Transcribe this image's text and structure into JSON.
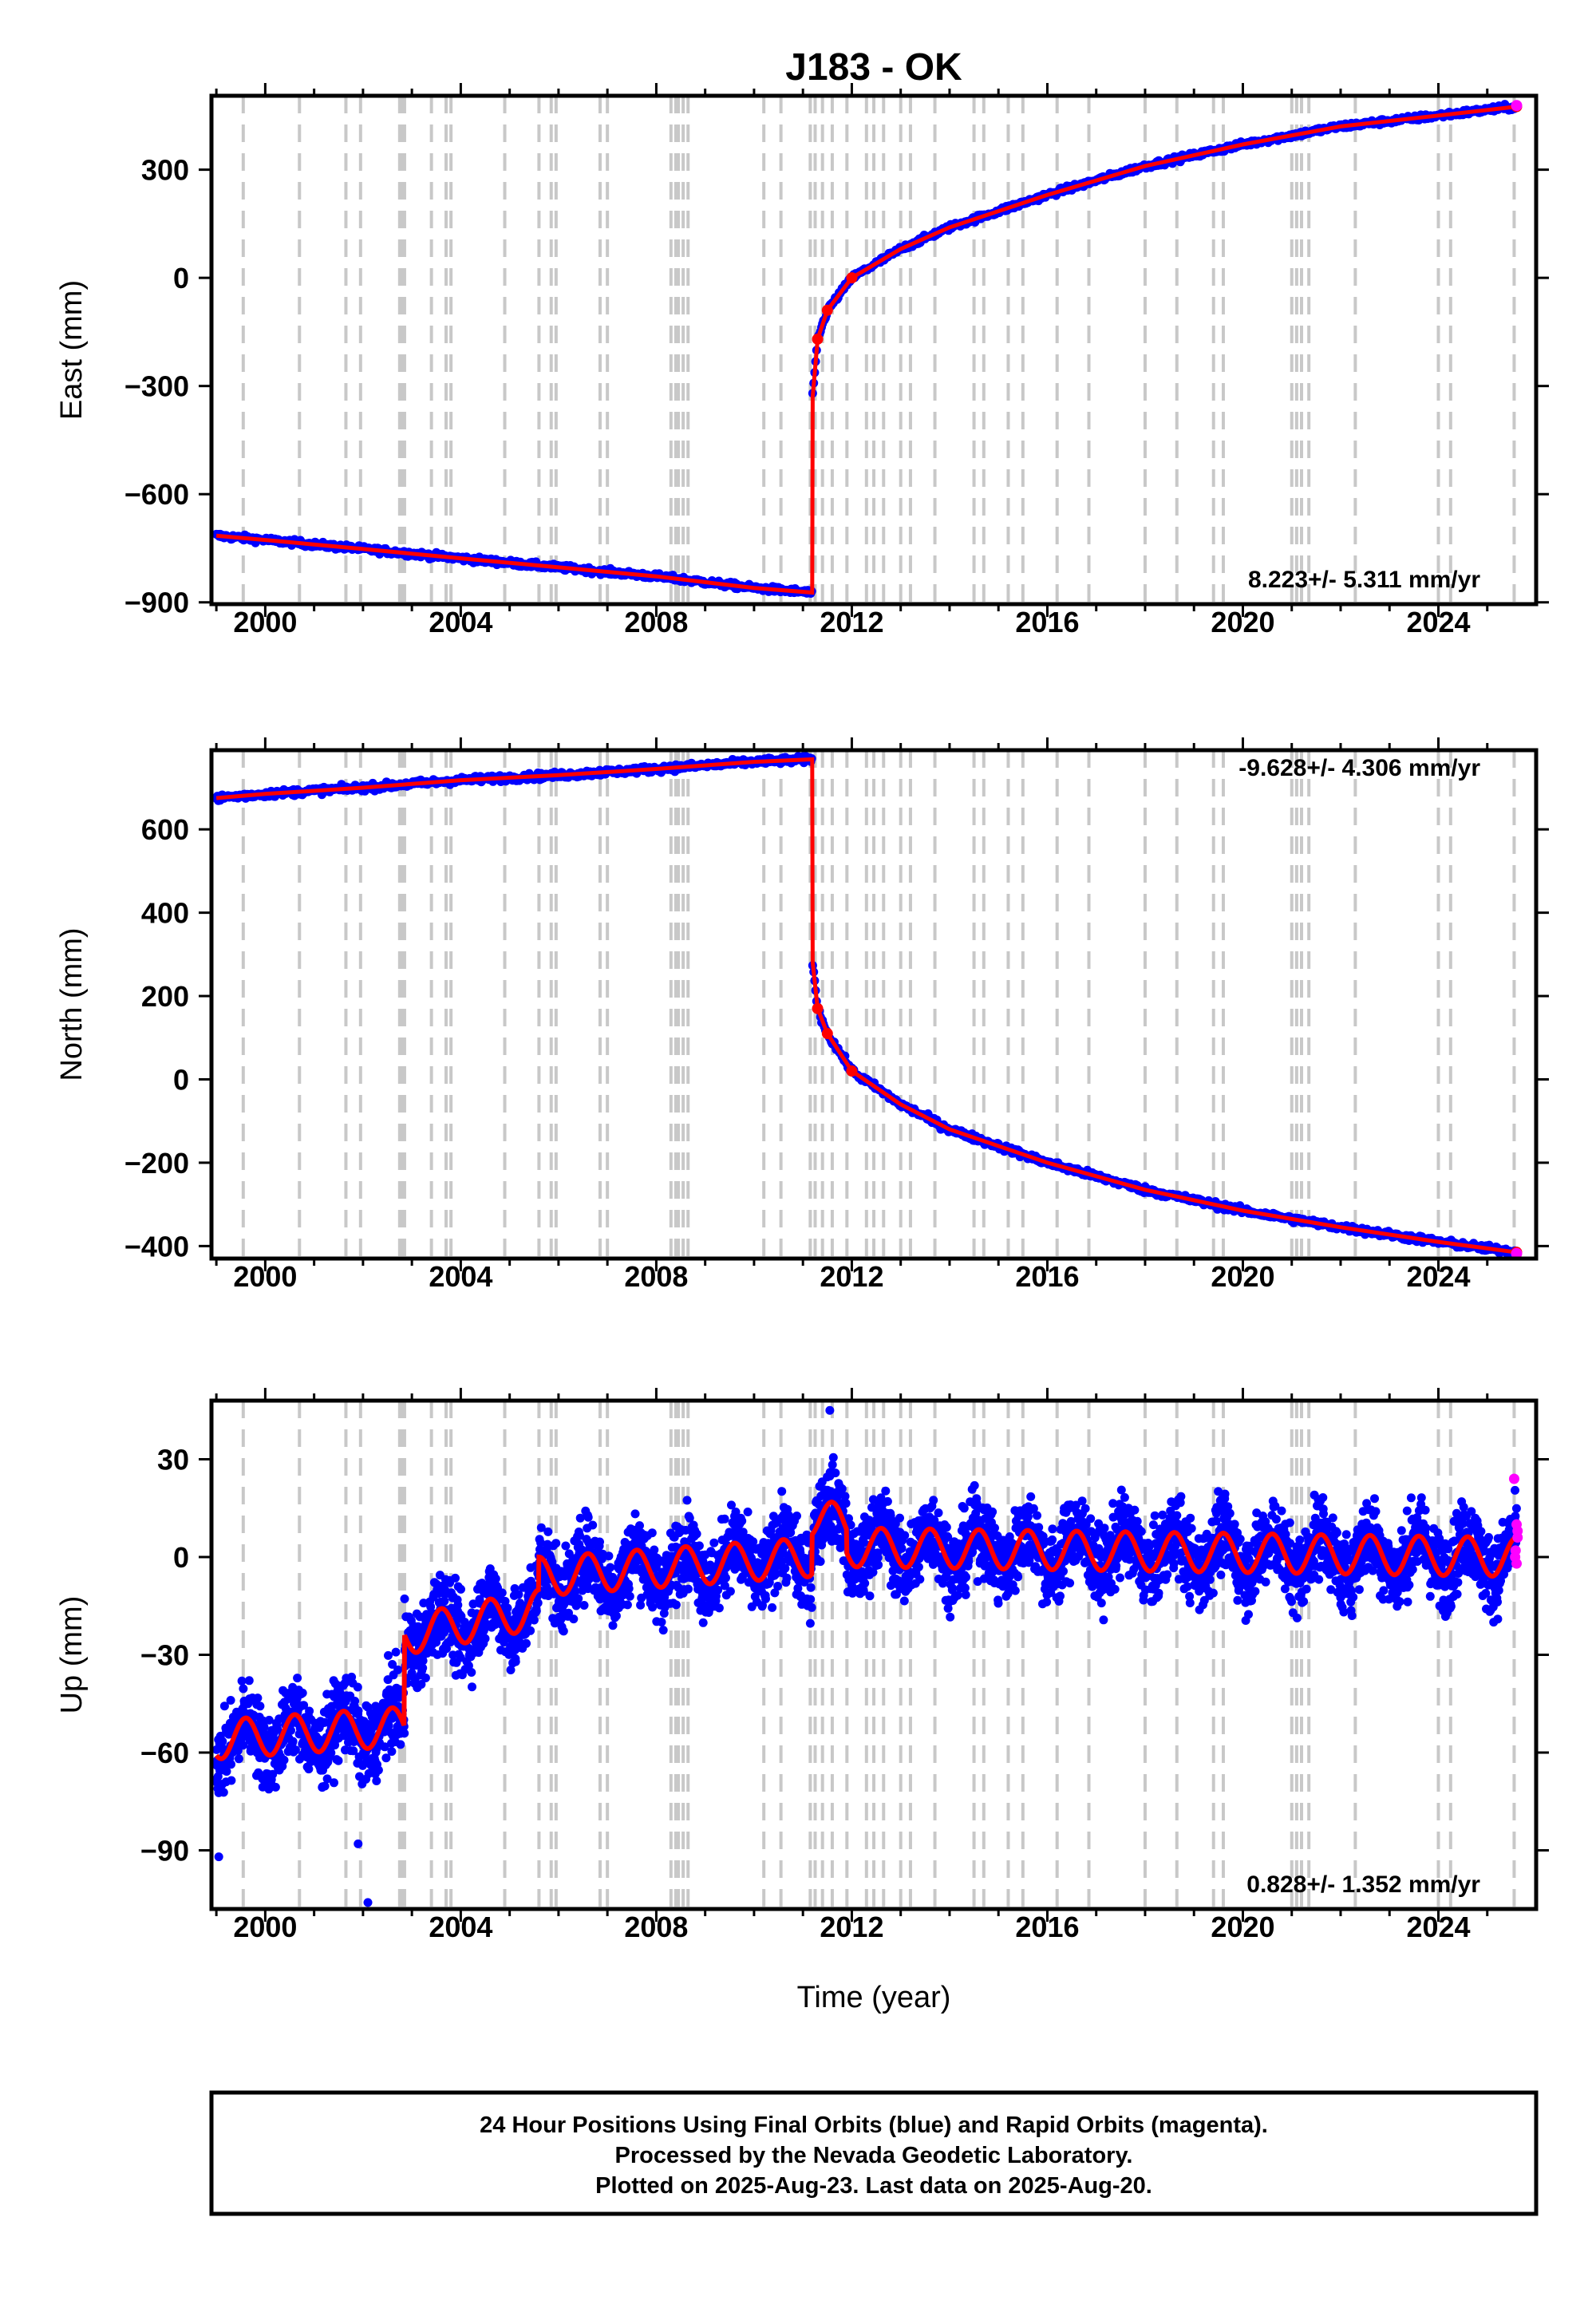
{
  "chart_data": [
    {
      "type": "scatter",
      "panel": "east",
      "title": "J183 - OK",
      "ylabel": "East (mm)",
      "xlim": [
        1998.9,
        2026.0
      ],
      "ylim": [
        -905,
        505
      ],
      "xticks": [
        2000,
        2004,
        2008,
        2012,
        2016,
        2020,
        2024
      ],
      "yticks": [
        300,
        0,
        -300,
        -600,
        -900
      ],
      "ytick_labels": [
        "300",
        "0",
        "−300",
        "−600",
        "−900"
      ],
      "rate_label": "8.223+/- 5.311 mm/yr",
      "step_epochs": [
        1999.55,
        2000.7,
        2001.65,
        2001.95,
        2002.75,
        2002.8,
        2002.85,
        2003.4,
        2003.7,
        2003.8,
        2004.9,
        2005.6,
        2005.85,
        2005.95,
        2006.85,
        2007.0,
        2008.3,
        2008.4,
        2008.45,
        2008.55,
        2008.65,
        2010.2,
        2010.55,
        2011.15,
        2011.25,
        2011.4,
        2011.6,
        2011.9,
        2012.3,
        2012.45,
        2012.65,
        2013.0,
        2013.2,
        2013.7,
        2014.5,
        2014.7,
        2015.2,
        2015.5,
        2016.2,
        2016.85,
        2018.0,
        2018.65,
        2019.4,
        2019.6,
        2021.0,
        2021.1,
        2021.2,
        2021.35,
        2022.3,
        2024.0,
        2024.25,
        2025.55
      ],
      "series": [
        {
          "name": "Final Orbits (blue)",
          "color": "#0000ff",
          "x": [
            1999.0,
            2000.0,
            2002.0,
            2004.0,
            2006.0,
            2008.0,
            2010.0,
            2011.19,
            2011.2,
            2011.3,
            2011.5,
            2012.0,
            2013.0,
            2014.0,
            2016.0,
            2018.0,
            2020.0,
            2022.0,
            2024.0,
            2025.6
          ],
          "y": [
            -715,
            -727,
            -752,
            -778,
            -803,
            -828,
            -860,
            -873,
            -330,
            -170,
            -90,
            0,
            80,
            140,
            230,
            310,
            370,
            420,
            450,
            475
          ]
        },
        {
          "name": "Rapid Orbits (magenta)",
          "color": "#ff00ff",
          "x": [
            2025.6
          ],
          "y": [
            478
          ]
        },
        {
          "name": "model fit",
          "color": "#ff0000",
          "x": [
            1999.0,
            2000.0,
            2002.0,
            2004.0,
            2006.0,
            2008.0,
            2010.0,
            2011.19,
            2011.2,
            2011.3,
            2011.5,
            2012.0,
            2013.0,
            2014.0,
            2016.0,
            2018.0,
            2020.0,
            2022.0,
            2024.0,
            2025.6
          ],
          "y": [
            -715,
            -727,
            -752,
            -778,
            -803,
            -828,
            -860,
            -873,
            -330,
            -170,
            -90,
            0,
            80,
            140,
            230,
            310,
            370,
            420,
            450,
            475
          ]
        }
      ]
    },
    {
      "type": "scatter",
      "panel": "north",
      "ylabel": "North (mm)",
      "xlim": [
        1998.9,
        2026.0
      ],
      "ylim": [
        -430,
        790
      ],
      "xticks": [
        2000,
        2004,
        2008,
        2012,
        2016,
        2020,
        2024
      ],
      "yticks": [
        600,
        400,
        200,
        0,
        -200,
        -400
      ],
      "ytick_labels": [
        "600",
        "400",
        "200",
        "0",
        "−200",
        "−400"
      ],
      "rate_label": "-9.628+/- 4.306 mm/yr",
      "step_epochs": [
        1999.55,
        2000.7,
        2001.65,
        2001.95,
        2002.75,
        2002.8,
        2002.85,
        2003.4,
        2003.7,
        2003.8,
        2004.9,
        2005.6,
        2005.85,
        2005.95,
        2006.85,
        2007.0,
        2008.3,
        2008.4,
        2008.45,
        2008.55,
        2008.65,
        2010.2,
        2010.55,
        2011.15,
        2011.25,
        2011.4,
        2011.6,
        2011.9,
        2012.3,
        2012.45,
        2012.65,
        2013.0,
        2013.2,
        2013.7,
        2014.5,
        2014.7,
        2015.2,
        2015.5,
        2016.2,
        2016.85,
        2018.0,
        2018.65,
        2019.4,
        2019.6,
        2021.0,
        2021.1,
        2021.2,
        2021.35,
        2022.3,
        2024.0,
        2024.25,
        2025.55
      ],
      "series": [
        {
          "name": "Final Orbits (blue)",
          "color": "#0000ff",
          "x": [
            1999.0,
            2000.0,
            2002.0,
            2004.0,
            2006.0,
            2008.0,
            2010.0,
            2011.19,
            2011.2,
            2011.3,
            2011.5,
            2012.0,
            2013.0,
            2014.0,
            2016.0,
            2018.0,
            2020.0,
            2022.0,
            2024.0,
            2025.6
          ],
          "y": [
            675,
            685,
            700,
            718,
            730,
            745,
            762,
            768,
            280,
            170,
            110,
            20,
            -60,
            -120,
            -200,
            -265,
            -315,
            -355,
            -390,
            -415
          ]
        },
        {
          "name": "Rapid Orbits (magenta)",
          "color": "#ff00ff",
          "x": [
            2025.6
          ],
          "y": [
            -418
          ]
        },
        {
          "name": "model fit",
          "color": "#ff0000",
          "x": [
            1999.0,
            2000.0,
            2002.0,
            2004.0,
            2006.0,
            2008.0,
            2010.0,
            2011.19,
            2011.2,
            2011.3,
            2011.5,
            2012.0,
            2013.0,
            2014.0,
            2016.0,
            2018.0,
            2020.0,
            2022.0,
            2024.0,
            2025.6
          ],
          "y": [
            675,
            685,
            700,
            718,
            730,
            745,
            762,
            768,
            280,
            170,
            110,
            20,
            -60,
            -120,
            -200,
            -265,
            -315,
            -355,
            -390,
            -415
          ]
        }
      ]
    },
    {
      "type": "scatter",
      "panel": "up",
      "ylabel": "Up (mm)",
      "xlabel": "Time (year)",
      "xlim": [
        1998.9,
        2026.0
      ],
      "ylim": [
        -108,
        48
      ],
      "xticks": [
        2000,
        2004,
        2008,
        2012,
        2016,
        2020,
        2024
      ],
      "yticks": [
        30,
        0,
        -30,
        -60,
        -90
      ],
      "ytick_labels": [
        "30",
        "0",
        "−30",
        "−60",
        "−90"
      ],
      "rate_label": "0.828+/- 1.352 mm/yr",
      "step_epochs": [
        1999.55,
        2000.7,
        2001.65,
        2001.95,
        2002.75,
        2002.8,
        2002.85,
        2003.4,
        2003.7,
        2003.8,
        2004.9,
        2005.6,
        2005.85,
        2005.95,
        2006.85,
        2007.0,
        2008.3,
        2008.4,
        2008.45,
        2008.55,
        2008.65,
        2010.2,
        2010.55,
        2011.15,
        2011.25,
        2011.4,
        2011.6,
        2011.9,
        2012.3,
        2012.45,
        2012.65,
        2013.0,
        2013.2,
        2013.7,
        2014.5,
        2014.7,
        2015.2,
        2015.5,
        2016.2,
        2016.85,
        2018.0,
        2018.65,
        2019.4,
        2019.6,
        2021.0,
        2021.1,
        2021.2,
        2021.35,
        2022.3,
        2024.0,
        2024.25,
        2025.55
      ],
      "series": [
        {
          "name": "Final Orbits (blue)",
          "color": "#0000ff",
          "segments": [
            {
              "x0": 1999.0,
              "x1": 2002.85,
              "base0": -56,
              "base1": -52
            },
            {
              "x0": 2002.85,
              "x1": 2005.6,
              "base0": -24,
              "base1": -16
            },
            {
              "x0": 2005.6,
              "x1": 2011.19,
              "base0": -6,
              "base1": 0
            },
            {
              "x0": 2011.19,
              "x1": 2011.9,
              "base0": 12,
              "base1": 10
            },
            {
              "x0": 2011.9,
              "x1": 2025.6,
              "base0": 3,
              "base1": 0
            }
          ],
          "seasonal_amplitude": 6,
          "scatter_sd": 6,
          "outliers": [
            {
              "x": 2011.55,
              "y": 45
            },
            {
              "x": 2002.1,
              "y": -106
            },
            {
              "x": 1999.05,
              "y": -92
            },
            {
              "x": 2001.9,
              "y": -88
            }
          ]
        },
        {
          "name": "Rapid Orbits (magenta)",
          "color": "#ff00ff",
          "x": [
            2025.55,
            2025.6,
            2025.62,
            2025.58,
            2025.6,
            2025.62,
            2025.57
          ],
          "y": [
            24,
            10,
            6,
            2,
            -2,
            8,
            0
          ]
        },
        {
          "name": "model fit",
          "color": "#ff0000",
          "style": "seasonal-sinusoid on the blue segments"
        }
      ]
    }
  ],
  "footer": {
    "line1": "24 Hour Positions Using Final Orbits (blue) and Rapid Orbits (magenta).",
    "line2": "Processed by the Nevada Geodetic Laboratory.",
    "line3": "Plotted on 2025-Aug-23. Last data on 2025-Aug-20."
  }
}
